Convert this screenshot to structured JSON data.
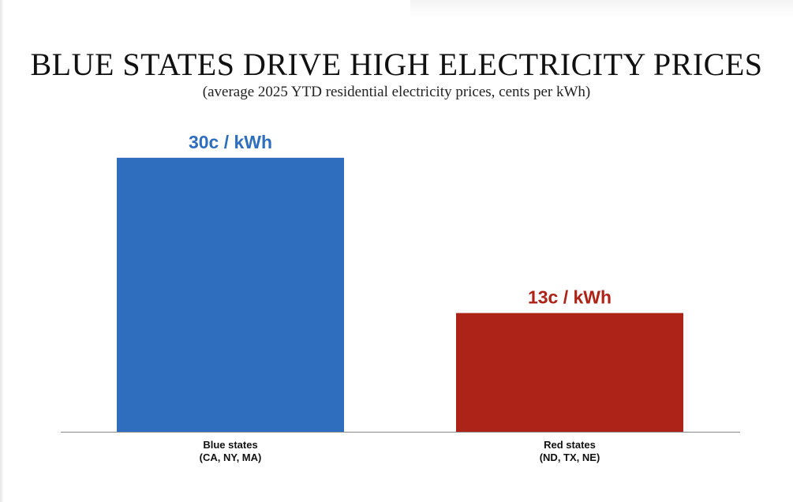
{
  "title": "BLUE STATES DRIVE HIGH ELECTRICITY PRICES",
  "subtitle": "(average 2025 YTD residential electricity prices, cents per kWh)",
  "chart_data": {
    "type": "bar",
    "categories": [
      [
        "Blue states",
        "(CA, NY, MA)"
      ],
      [
        "Red states",
        "(ND, TX, NE)"
      ]
    ],
    "values": [
      30,
      13
    ],
    "data_labels": [
      "30c  / kWh",
      "13c  / kWh"
    ],
    "colors": [
      "#2f6ebe",
      "#ad2318"
    ],
    "label_colors": [
      "#2f6ebe",
      "#ad2318"
    ],
    "axis_color": "#888888",
    "grid": false,
    "legend": "none",
    "ylim": [
      0,
      35
    ]
  }
}
